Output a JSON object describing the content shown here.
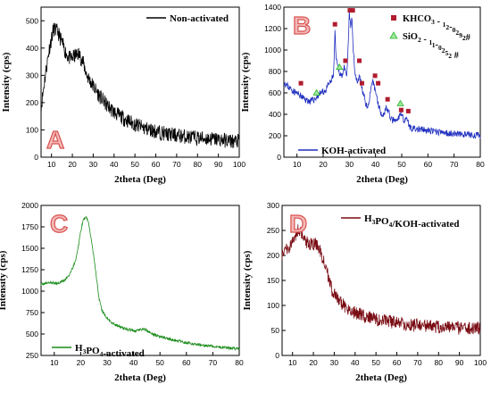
{
  "chart_data": [
    {
      "type": "line",
      "panel_label": "A",
      "xlabel": "2theta (Deg)",
      "ylabel": "Intensity (cps)",
      "xlim": [
        5,
        100
      ],
      "ylim": [
        0,
        550
      ],
      "xticks": [
        10,
        20,
        30,
        40,
        50,
        60,
        70,
        80,
        90,
        100
      ],
      "yticks": [
        0,
        100,
        200,
        300,
        400,
        500
      ],
      "legend": {
        "position": "top-right"
      },
      "series": [
        {
          "name": "Non-activated",
          "color": "#000000",
          "x": [
            5,
            7,
            9,
            11,
            13,
            15,
            17,
            19,
            21,
            23,
            25,
            27,
            30,
            33,
            36,
            40,
            45,
            50,
            55,
            60,
            65,
            70,
            75,
            80,
            85,
            90,
            95,
            100
          ],
          "y": [
            180,
            300,
            400,
            470,
            460,
            420,
            380,
            360,
            370,
            380,
            350,
            300,
            260,
            225,
            195,
            165,
            140,
            120,
            105,
            95,
            85,
            80,
            75,
            70,
            68,
            65,
            60,
            58
          ]
        }
      ]
    },
    {
      "type": "line",
      "panel_label": "B",
      "xlabel": "2theta (Deg)",
      "ylabel": "Intensity (cps)",
      "xlim": [
        5,
        80
      ],
      "ylim": [
        0,
        1400
      ],
      "xticks": [
        10,
        20,
        30,
        40,
        50,
        60,
        70,
        80
      ],
      "yticks": [
        0,
        200,
        400,
        600,
        800,
        1000,
        1200,
        1400
      ],
      "legend": {
        "position": "bottom-left"
      },
      "series": [
        {
          "name": "KOH-activated",
          "color": "#1f2fbf",
          "x": [
            5,
            7,
            9,
            11,
            13,
            15,
            17,
            19,
            21,
            22,
            23,
            24,
            24.5,
            25,
            26,
            27,
            28,
            29,
            29.5,
            30,
            30.5,
            31,
            31.5,
            32,
            33,
            34,
            35,
            36,
            37,
            38,
            39,
            40,
            41,
            42,
            43,
            44,
            45,
            46,
            48,
            50,
            51,
            52,
            53,
            55,
            57,
            59,
            62,
            65,
            70,
            75,
            80
          ],
          "y": [
            700,
            650,
            610,
            580,
            540,
            520,
            545,
            600,
            620,
            680,
            700,
            780,
            1160,
            900,
            800,
            760,
            830,
            740,
            1000,
            1350,
            1200,
            1300,
            1000,
            820,
            700,
            760,
            620,
            530,
            450,
            600,
            700,
            620,
            500,
            420,
            390,
            470,
            420,
            350,
            330,
            420,
            320,
            380,
            280,
            260,
            260,
            250,
            240,
            230,
            220,
            210,
            200
          ]
        }
      ],
      "markers": [
        {
          "name": "KHCO3 - 12-0292#",
          "symbol": "square",
          "color": "#b01c2e",
          "x": [
            11.5,
            24.5,
            28.5,
            30.2,
            31.3,
            33.8,
            34.8,
            39.8,
            41.0,
            44.6,
            49.8,
            52.5
          ],
          "y": [
            690,
            1240,
            900,
            1370,
            1370,
            900,
            690,
            760,
            690,
            540,
            440,
            430
          ]
        },
        {
          "name": "SiO2 - 11-0252 #",
          "symbol": "triangle",
          "color": "#2fb52f",
          "x": [
            17.5,
            26.2,
            49.5
          ],
          "y": [
            600,
            840,
            500
          ]
        }
      ]
    },
    {
      "type": "line",
      "panel_label": "C",
      "xlabel": "2theta (Deg)",
      "ylabel": "Intensity (cps)",
      "xlim": [
        5,
        80
      ],
      "ylim": [
        250,
        2000
      ],
      "xticks": [
        10,
        20,
        30,
        40,
        50,
        60,
        70,
        80
      ],
      "yticks": [
        250,
        500,
        750,
        1000,
        1250,
        1500,
        1750,
        2000
      ],
      "legend": {
        "position": "bottom-left"
      },
      "series": [
        {
          "name": "H3PO4-activated",
          "color": "#1a8c1a",
          "x": [
            5,
            8,
            11,
            14,
            16,
            18,
            19,
            20,
            21,
            22,
            23,
            24,
            25,
            26,
            27,
            28,
            30,
            32,
            35,
            38,
            41,
            44,
            47,
            50,
            55,
            60,
            65,
            70,
            75,
            80
          ],
          "y": [
            1080,
            1100,
            1090,
            1130,
            1200,
            1350,
            1500,
            1700,
            1830,
            1870,
            1800,
            1600,
            1400,
            1150,
            900,
            780,
            680,
            630,
            580,
            550,
            540,
            560,
            500,
            470,
            430,
            400,
            375,
            355,
            340,
            325
          ]
        }
      ]
    },
    {
      "type": "line",
      "panel_label": "D",
      "xlabel": "2theta (Deg)",
      "ylabel": "Intensity (cps)",
      "xlim": [
        5,
        100
      ],
      "ylim": [
        0,
        300
      ],
      "xticks": [
        10,
        20,
        30,
        40,
        50,
        60,
        70,
        80,
        90,
        100
      ],
      "yticks": [
        0,
        50,
        100,
        150,
        200,
        250,
        300
      ],
      "legend": {
        "position": "top-right"
      },
      "series": [
        {
          "name": "H3PO4/KOH-activated",
          "color": "#7a0c14",
          "x": [
            5,
            7,
            9,
            11,
            13,
            15,
            17,
            19,
            21,
            23,
            25,
            27,
            29,
            31,
            33,
            36,
            40,
            45,
            50,
            55,
            60,
            65,
            70,
            75,
            80,
            85,
            90,
            95,
            100
          ],
          "y": [
            205,
            215,
            220,
            235,
            255,
            240,
            225,
            220,
            225,
            210,
            190,
            160,
            130,
            115,
            105,
            95,
            85,
            78,
            72,
            68,
            65,
            62,
            60,
            58,
            57,
            56,
            55,
            55,
            54
          ]
        }
      ]
    }
  ]
}
